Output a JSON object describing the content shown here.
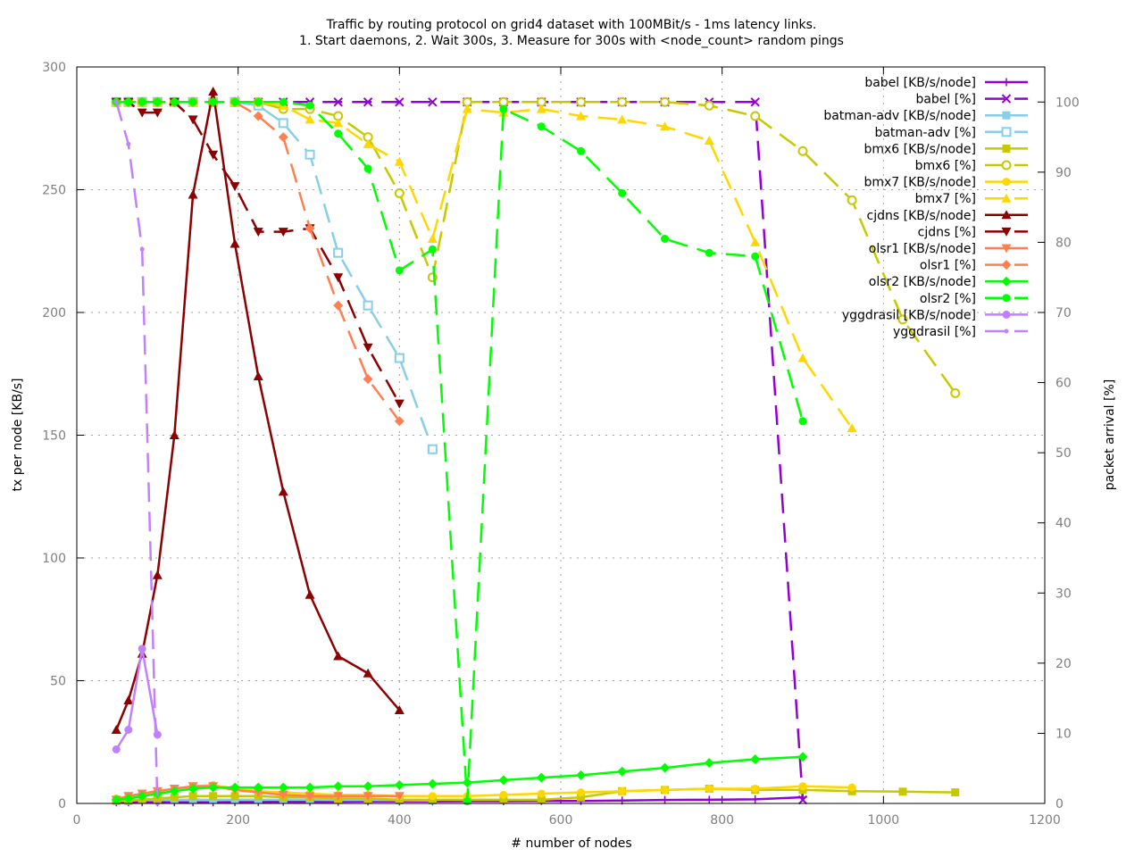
{
  "chart_data": {
    "type": "line",
    "title": "Traffic by routing protocol on grid4 dataset with 100MBit/s - 1ms latency links.",
    "subtitle": "1. Start daemons, 2. Wait 300s, 3. Measure for 300s with <node_count> random pings",
    "xlabel": "# number of nodes",
    "ylabel": "tx per node [KB/s]",
    "y2label": "packet arrival [%]",
    "xlim": [
      0,
      1200
    ],
    "ylim": [
      0,
      300
    ],
    "y2lim": [
      0,
      105
    ],
    "xticks": [
      0,
      200,
      400,
      600,
      800,
      1000,
      1200
    ],
    "yticks": [
      0,
      50,
      100,
      150,
      200,
      250,
      300
    ],
    "y2ticks": [
      0,
      10,
      20,
      30,
      40,
      50,
      60,
      70,
      80,
      90,
      100
    ],
    "grid": true,
    "legend_position": "top-right",
    "series": [
      {
        "name": "babel [KB/s/node]",
        "axis": "y",
        "color": "#9400d3",
        "dash": "solid",
        "marker": "plus",
        "x": [
          49,
          64,
          81,
          100,
          121,
          144,
          169,
          196,
          225,
          256,
          289,
          324,
          361,
          400,
          441,
          484,
          529,
          576,
          625,
          676,
          729,
          784,
          841,
          900
        ],
        "y": [
          0.5,
          0.5,
          0.5,
          0.5,
          0.5,
          0.5,
          0.5,
          0.6,
          0.6,
          0.7,
          0.7,
          0.7,
          0.8,
          0.8,
          0.8,
          0.9,
          0.9,
          1,
          1,
          1.2,
          1.4,
          1.5,
          1.7,
          2.5
        ]
      },
      {
        "name": "babel [%]",
        "axis": "y2",
        "color": "#9400d3",
        "dash": "dashed",
        "marker": "cross",
        "x": [
          49,
          64,
          81,
          100,
          121,
          144,
          169,
          196,
          225,
          256,
          289,
          324,
          361,
          400,
          441,
          484,
          529,
          576,
          625,
          676,
          729,
          784,
          841,
          900
        ],
        "y": [
          100,
          100,
          100,
          100,
          100,
          100,
          100,
          100,
          100,
          100,
          100,
          100,
          100,
          100,
          100,
          100,
          100,
          100,
          100,
          100,
          100,
          100,
          100,
          0.5
        ]
      },
      {
        "name": "batman-adv [KB/s/node]",
        "axis": "y",
        "color": "#87ceeb",
        "dash": "solid",
        "marker": "square",
        "x": [
          49,
          64,
          81,
          100,
          121,
          144,
          169,
          196,
          225,
          256,
          289,
          324,
          361,
          400,
          441
        ],
        "y": [
          1.5,
          1.5,
          1.5,
          1.5,
          1.5,
          1.5,
          1.5,
          1.5,
          1.5,
          1.5,
          1.5,
          1.4,
          1.4,
          1.3,
          1.2
        ]
      },
      {
        "name": "batman-adv [%]",
        "axis": "y2",
        "color": "#87ceeb",
        "dash": "dashed",
        "marker": "open-square",
        "x": [
          49,
          64,
          81,
          100,
          121,
          144,
          169,
          196,
          225,
          256,
          289,
          324,
          361,
          400,
          441
        ],
        "y": [
          100,
          100,
          100,
          100,
          100,
          100,
          100,
          100,
          99.5,
          97,
          92.5,
          78.5,
          71,
          63.5,
          50.5
        ]
      },
      {
        "name": "bmx6 [KB/s/node]",
        "axis": "y",
        "color": "#c8c800",
        "dash": "solid",
        "marker": "square",
        "x": [
          49,
          64,
          81,
          100,
          121,
          144,
          169,
          196,
          225,
          256,
          289,
          324,
          361,
          400,
          441,
          484,
          529,
          576,
          625,
          676,
          729,
          784,
          841,
          900,
          961,
          1024,
          1089
        ],
        "y": [
          1,
          1,
          1.5,
          2,
          2.5,
          3,
          3,
          3,
          3,
          2.5,
          2.5,
          2,
          2,
          1.5,
          1.5,
          1.5,
          1.5,
          1.5,
          2.5,
          5,
          5.5,
          6,
          5.5,
          5.5,
          5,
          4.8,
          4.5
        ]
      },
      {
        "name": "bmx6 [%]",
        "axis": "y2",
        "color": "#c8c800",
        "dash": "dashed",
        "marker": "open-circle",
        "x": [
          49,
          64,
          81,
          100,
          121,
          144,
          169,
          196,
          225,
          256,
          289,
          324,
          361,
          400,
          441,
          484,
          529,
          576,
          625,
          676,
          729,
          784,
          841,
          900,
          961,
          1024,
          1089
        ],
        "y": [
          100,
          100,
          100,
          100,
          100,
          100,
          100,
          100,
          100,
          99,
          99,
          98,
          95,
          87,
          75,
          100,
          100,
          100,
          100,
          100,
          100,
          99.5,
          98,
          93,
          86,
          69,
          58.5
        ]
      },
      {
        "name": "bmx7 [KB/s/node]",
        "axis": "y",
        "color": "#ffd700",
        "dash": "solid",
        "marker": "circle",
        "x": [
          49,
          64,
          81,
          100,
          121,
          144,
          169,
          196,
          225,
          256,
          289,
          324,
          361,
          400,
          441,
          484,
          529,
          576,
          625,
          676,
          729,
          784,
          841,
          900,
          961
        ],
        "y": [
          2,
          3,
          4,
          5,
          6,
          7,
          7.5,
          6,
          5,
          4.5,
          4,
          3.5,
          3.5,
          3,
          3,
          3,
          3.5,
          4,
          4.5,
          5,
          5.5,
          6,
          6,
          7,
          6.5
        ]
      },
      {
        "name": "bmx7 [%]",
        "axis": "y2",
        "color": "#ffd700",
        "dash": "dashed",
        "marker": "triangle",
        "x": [
          49,
          64,
          81,
          100,
          121,
          144,
          169,
          196,
          225,
          256,
          289,
          324,
          361,
          400,
          441,
          484,
          529,
          576,
          625,
          676,
          729,
          784,
          841,
          900,
          961
        ],
        "y": [
          100,
          100,
          100,
          100,
          100,
          100,
          100,
          100,
          100,
          99.5,
          97.5,
          97,
          94,
          91.5,
          80.5,
          99,
          98.5,
          99,
          98,
          97.5,
          96.5,
          94.5,
          80,
          63.5,
          53.5
        ]
      },
      {
        "name": "cjdns [KB/s/node]",
        "axis": "y",
        "color": "#8b0000",
        "dash": "solid",
        "marker": "triangle",
        "x": [
          49,
          64,
          81,
          100,
          121,
          144,
          169,
          196,
          225,
          256,
          289,
          324,
          361,
          400
        ],
        "y": [
          30,
          42,
          61,
          93,
          150,
          248,
          290,
          228,
          174,
          127,
          85,
          60,
          53,
          38
        ]
      },
      {
        "name": "cjdns [%]",
        "axis": "y2",
        "color": "#8b0000",
        "dash": "dashed",
        "marker": "triangle-down",
        "x": [
          49,
          64,
          81,
          100,
          121,
          144,
          169,
          196,
          225,
          256,
          289,
          324,
          361,
          400
        ],
        "y": [
          100,
          100,
          98.5,
          98.5,
          100,
          97.5,
          92.5,
          88,
          81.5,
          81.5,
          82,
          75,
          65,
          57
        ]
      },
      {
        "name": "olsr1 [KB/s/node]",
        "axis": "y",
        "color": "#ff7f50",
        "dash": "solid",
        "marker": "triangle-down",
        "x": [
          49,
          64,
          81,
          100,
          121,
          144,
          169,
          196,
          225,
          256,
          289,
          324,
          361,
          400
        ],
        "y": [
          1.5,
          3,
          4,
          5,
          6,
          7,
          7,
          5.5,
          4.5,
          3.5,
          3,
          3,
          3,
          3
        ]
      },
      {
        "name": "olsr1 [%]",
        "axis": "y2",
        "color": "#ff7f50",
        "dash": "dashed",
        "marker": "diamond",
        "x": [
          49,
          64,
          81,
          100,
          121,
          144,
          169,
          196,
          225,
          256,
          289,
          324,
          361,
          400
        ],
        "y": [
          100,
          100,
          100,
          100,
          100,
          100,
          100,
          100,
          98,
          95,
          82,
          71,
          60.5,
          54.5
        ]
      },
      {
        "name": "olsr2 [KB/s/node]",
        "axis": "y",
        "color": "#00ff00",
        "dash": "solid",
        "marker": "diamond",
        "x": [
          49,
          64,
          81,
          100,
          121,
          144,
          169,
          196,
          225,
          256,
          289,
          324,
          361,
          400,
          441,
          484,
          529,
          576,
          625,
          676,
          729,
          784,
          841,
          900
        ],
        "y": [
          1.5,
          2,
          3,
          4,
          5,
          6,
          6.5,
          6.5,
          6.5,
          6.5,
          6.5,
          7,
          7,
          7.5,
          8,
          8.5,
          9.5,
          10.5,
          11.5,
          13,
          14.5,
          16.5,
          18,
          19
        ]
      },
      {
        "name": "olsr2 [%]",
        "axis": "y2",
        "color": "#00ff00",
        "dash": "dashed",
        "marker": "circle",
        "x": [
          49,
          64,
          81,
          100,
          121,
          144,
          169,
          196,
          225,
          256,
          289,
          324,
          361,
          400,
          441,
          484,
          529,
          576,
          625,
          676,
          729,
          784,
          841,
          900
        ],
        "y": [
          100,
          100,
          100,
          100,
          100,
          100,
          100,
          100,
          100,
          100,
          99.5,
          95.5,
          90.5,
          76,
          79,
          0.3,
          99,
          96.5,
          93,
          87,
          80.5,
          78.5,
          78,
          54.5
        ]
      },
      {
        "name": "yggdrasil [KB/s/node]",
        "axis": "y",
        "color": "#c080ff",
        "dash": "solid",
        "marker": "circle",
        "x": [
          49,
          64,
          81,
          100
        ],
        "y": [
          22,
          30,
          63,
          28
        ]
      },
      {
        "name": "yggdrasil [%]",
        "axis": "y2",
        "color": "#c080ff",
        "dash": "dashed",
        "marker": "dot",
        "x": [
          49,
          64,
          81,
          100
        ],
        "y": [
          100,
          94,
          79,
          0
        ]
      }
    ]
  }
}
